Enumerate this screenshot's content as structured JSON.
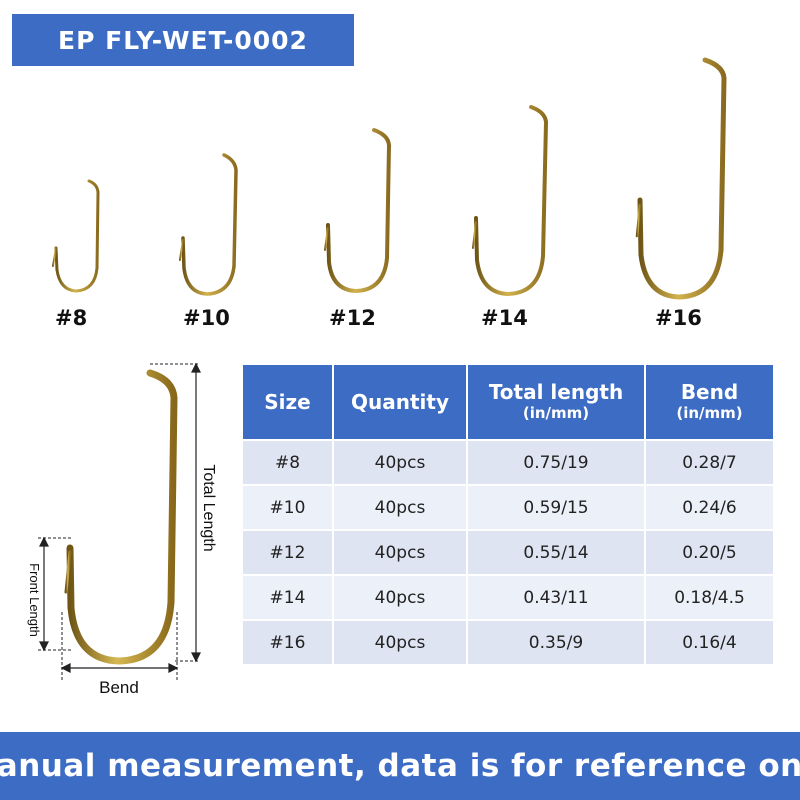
{
  "header": {
    "model": "EP FLY-WET-0002"
  },
  "hooks": [
    {
      "label": "#8"
    },
    {
      "label": "#10"
    },
    {
      "label": "#12"
    },
    {
      "label": "#14"
    },
    {
      "label": "#16"
    }
  ],
  "diagram": {
    "total_length_label": "Total Length",
    "front_length_label": "Front Length",
    "bend_label": "Bend"
  },
  "table": {
    "headers": [
      {
        "title": "Size",
        "sub": ""
      },
      {
        "title": "Quantity",
        "sub": ""
      },
      {
        "title": "Total length",
        "sub": "(in/mm)"
      },
      {
        "title": "Bend",
        "sub": "(in/mm)"
      }
    ],
    "rows": [
      {
        "size": "#8",
        "quantity": "40pcs",
        "total_length": "0.75/19",
        "bend": "0.28/7"
      },
      {
        "size": "#10",
        "quantity": "40pcs",
        "total_length": "0.59/15",
        "bend": "0.24/6"
      },
      {
        "size": "#12",
        "quantity": "40pcs",
        "total_length": "0.55/14",
        "bend": "0.20/5"
      },
      {
        "size": "#14",
        "quantity": "40pcs",
        "total_length": "0.43/11",
        "bend": "0.18/4.5"
      },
      {
        "size": "#16",
        "quantity": "40pcs",
        "total_length": "0.35/9",
        "bend": "0.16/4"
      }
    ]
  },
  "footer": {
    "note": "Manual measurement, data is for reference only"
  },
  "colors": {
    "accent": "#3d6cc4",
    "hook_gold": "#a8872a",
    "row_odd": "#dfe4f2",
    "row_even": "#ecf0f9"
  }
}
